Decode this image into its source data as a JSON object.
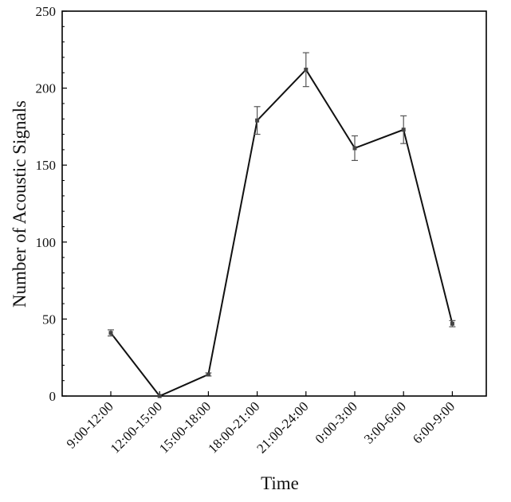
{
  "chart_data": {
    "type": "line",
    "xlabel": "Time",
    "ylabel": "Number of Acoustic Signals",
    "categories": [
      "9:00-12:00",
      "12:00-15:00",
      "15:00-18:00",
      "18:00-21:00",
      "21:00-24:00",
      "0:00-3:00",
      "3:00-6:00",
      "6:00-9:00"
    ],
    "series": [
      {
        "values": [
          41,
          0,
          14,
          179,
          212,
          161,
          173,
          47
        ],
        "error": [
          2,
          0,
          1,
          9,
          11,
          8,
          9,
          2
        ]
      }
    ],
    "ylim": [
      0,
      250
    ],
    "yticks": [
      0,
      50,
      100,
      150,
      200,
      250
    ],
    "minor_ytick_step": 10,
    "grid": false,
    "colors": {
      "line": "#111111",
      "axis": "#000000"
    }
  }
}
